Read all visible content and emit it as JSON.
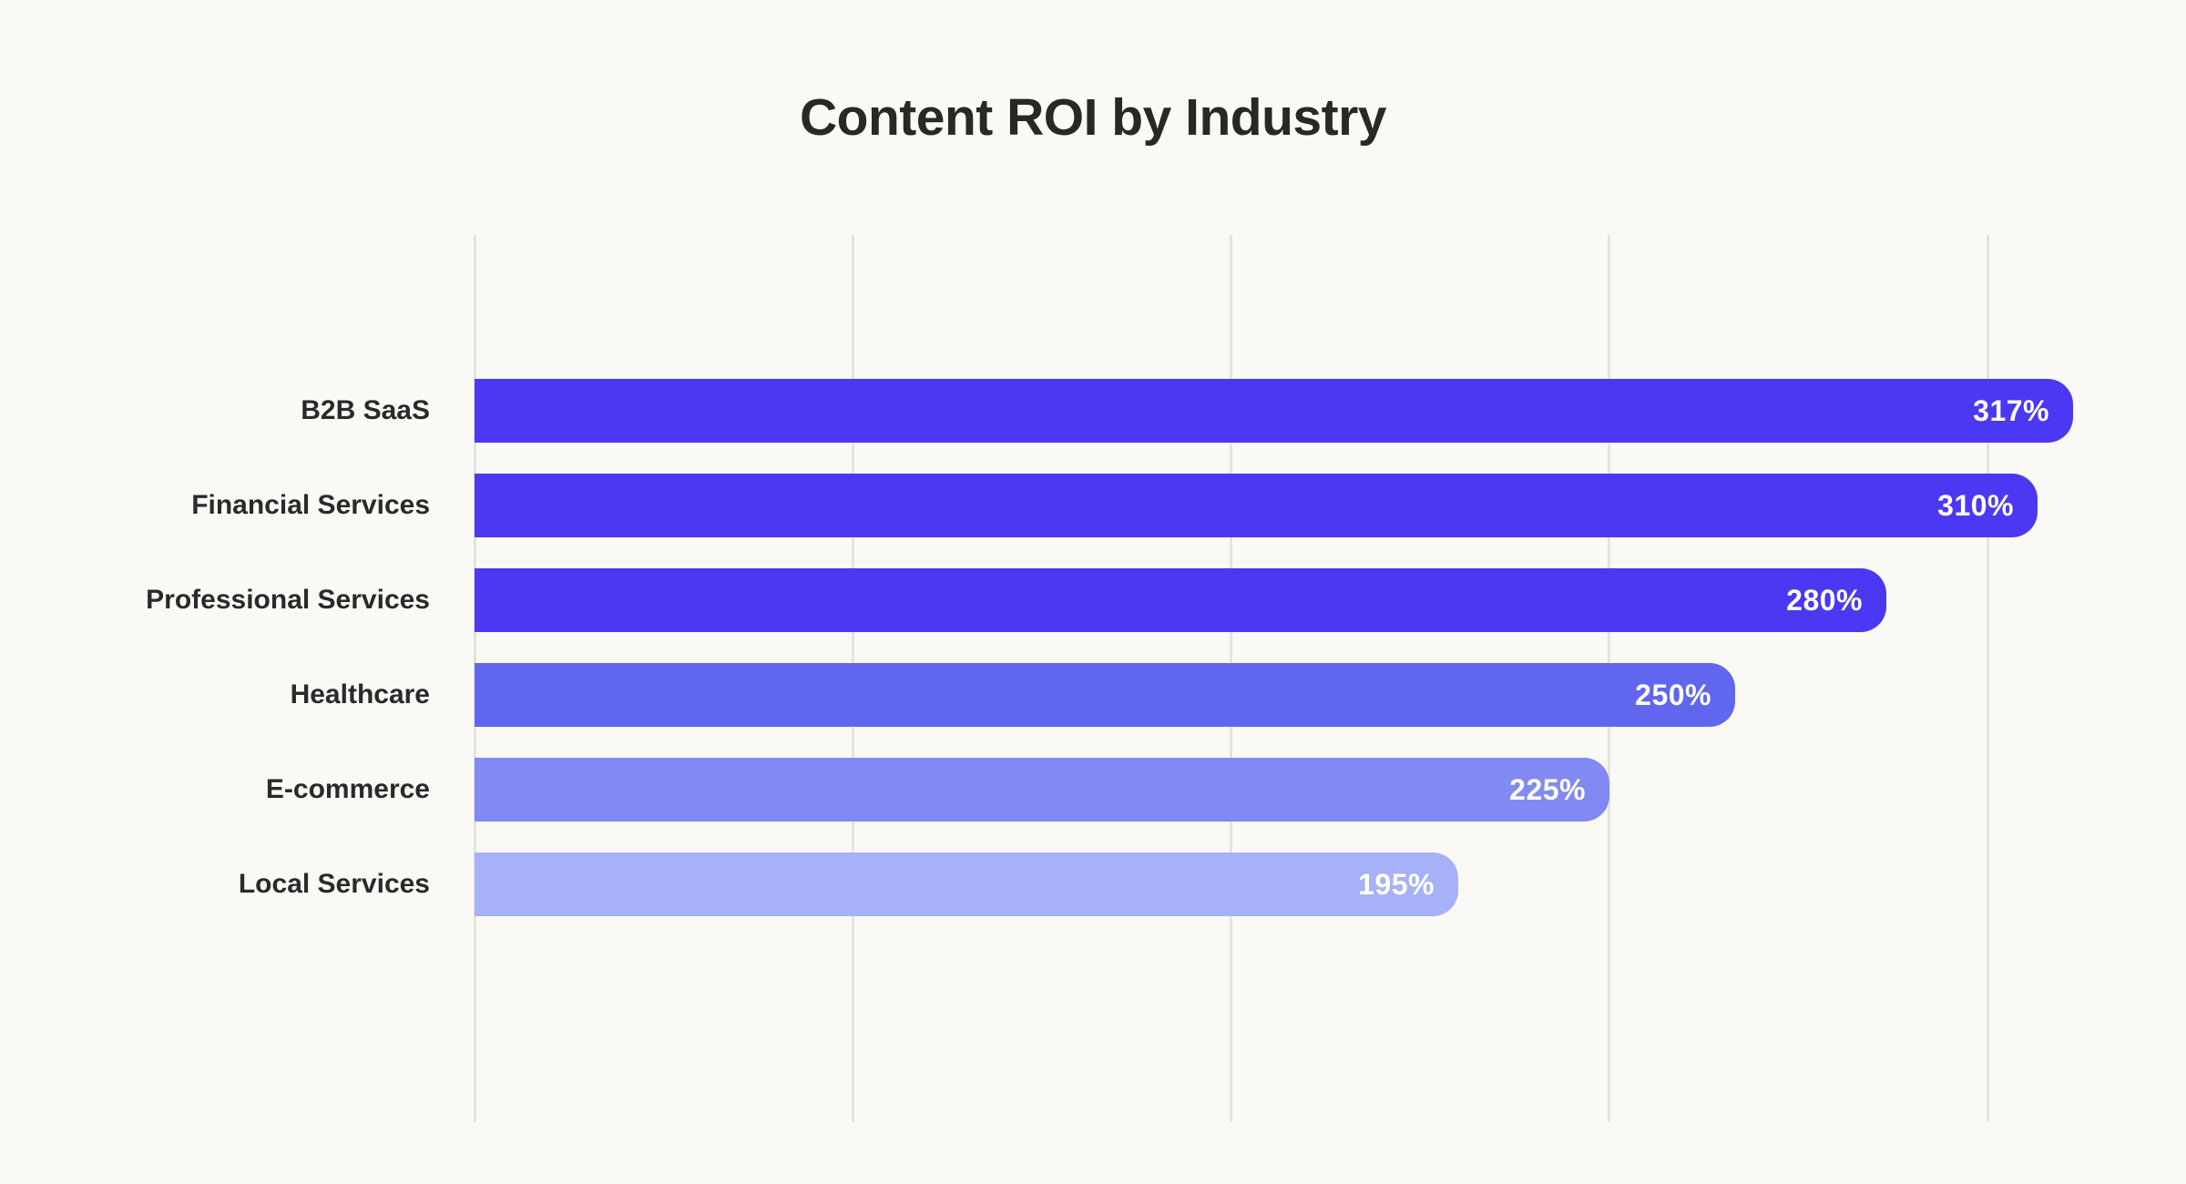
{
  "title": "Content ROI by Industry",
  "colors": {
    "background": "#FAF9F6",
    "gridline": "#E5E3E1",
    "title_text": "#2A2825",
    "category_text": "#2B2A28",
    "value_text": "#FFFFFF"
  },
  "chart_data": {
    "type": "bar",
    "orientation": "horizontal",
    "title": "Content ROI by Industry",
    "categories": [
      "B2B SaaS",
      "Financial Services",
      "Professional Services",
      "Healthcare",
      "E-commerce",
      "Local Services"
    ],
    "values": [
      317,
      310,
      280,
      250,
      225,
      195
    ],
    "value_labels": [
      "317%",
      "310%",
      "280%",
      "250%",
      "225%",
      "195%"
    ],
    "bar_colors": [
      "#4B38F3",
      "#4B38F3",
      "#4B38F3",
      "#6166EE",
      "#8189F2",
      "#A6B1F8"
    ],
    "value_suffix": "%",
    "xlabel": "",
    "ylabel": "",
    "xlim": [
      0,
      317
    ],
    "gridline_values": [
      0,
      75,
      150,
      225,
      300
    ],
    "grid": "vertical-only",
    "axis_tick_labels_visible": false,
    "legend_position": "none",
    "value_labels_inside_bars": true
  }
}
